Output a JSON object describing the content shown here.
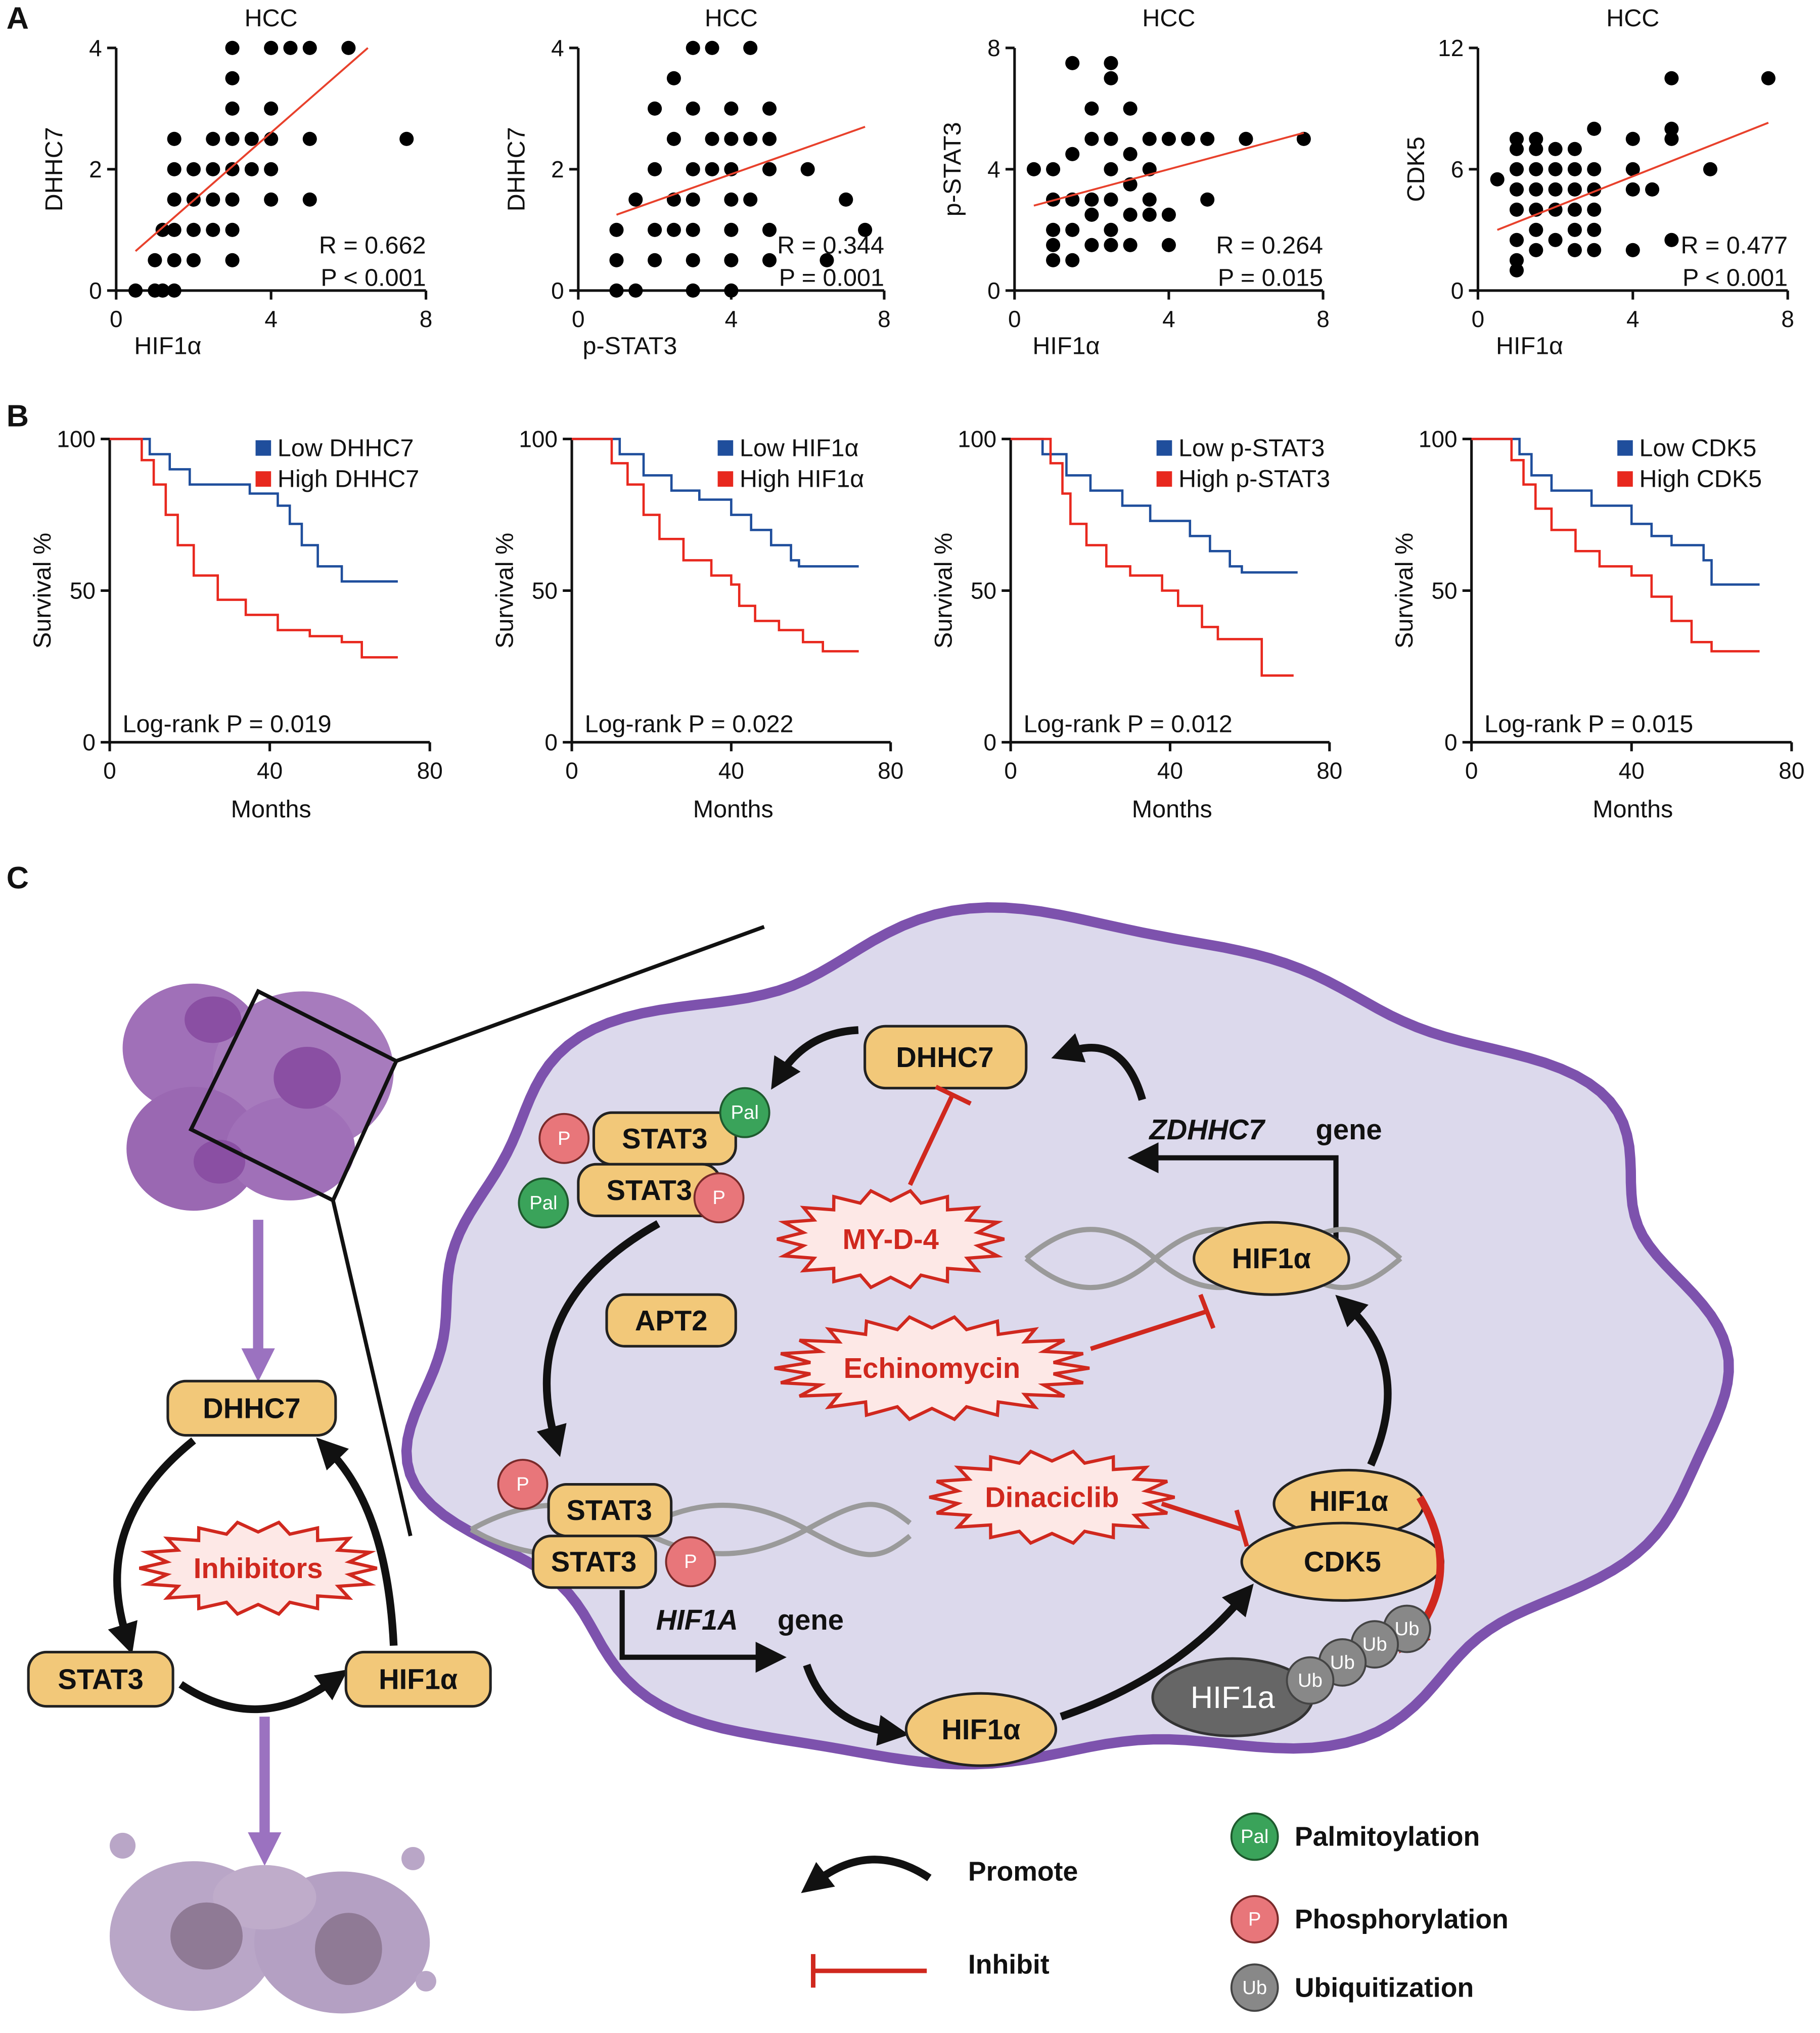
{
  "panel_labels": [
    "A",
    "B",
    "C"
  ],
  "chart_data": [
    {
      "type": "scatter",
      "title": "HCC",
      "x_label": "HIF1α",
      "y_label": "DHHC7",
      "color": "#000000",
      "x": [
        0.5,
        1,
        1.2,
        1.5,
        1,
        1.5,
        2,
        3,
        1.2,
        1.5,
        2,
        2.5,
        3,
        1.5,
        2,
        2.5,
        3,
        4,
        5,
        1.5,
        2,
        2.5,
        3,
        3.5,
        4,
        1.5,
        2.5,
        3,
        3.5,
        5,
        7.5,
        3,
        4,
        3,
        3,
        4,
        4.5,
        5,
        6,
        4
      ],
      "values": [
        0,
        0,
        0,
        0,
        0.5,
        0.5,
        0.5,
        0.5,
        1,
        1,
        1,
        1,
        1,
        1.5,
        1.5,
        1.5,
        1.5,
        1.5,
        1.5,
        2,
        2,
        2,
        2,
        2,
        2,
        2.5,
        2.5,
        2.5,
        2.5,
        2.5,
        2.5,
        3,
        3,
        3.5,
        4,
        4,
        4,
        4,
        4,
        2.5
      ],
      "trendline": {
        "x": [
          0.5,
          6.5
        ],
        "y": [
          0.65,
          4
        ],
        "color": "#e8412c"
      },
      "annotations": [
        "R = 0.662",
        "P < 0.001"
      ],
      "xlim": [
        0,
        8
      ],
      "ylim": [
        0,
        4
      ],
      "xticks": [
        0,
        4,
        8
      ],
      "yticks": [
        0,
        2,
        4
      ]
    },
    {
      "type": "scatter",
      "title": "HCC",
      "x_label": "p-STAT3",
      "y_label": "DHHC7",
      "color": "#000000",
      "x": [
        1,
        1.5,
        3,
        4,
        1,
        2,
        3,
        4,
        5,
        6.5,
        1,
        2,
        2.5,
        3,
        4,
        5,
        1.5,
        2.5,
        3,
        4,
        4.5,
        7,
        7.5,
        2,
        3,
        3.5,
        4,
        5,
        6,
        2.5,
        3.5,
        4,
        4.5,
        5,
        2,
        3,
        4,
        5,
        2.5,
        3,
        3.5,
        4.5
      ],
      "values": [
        0,
        0,
        0,
        0,
        0.5,
        0.5,
        0.5,
        0.5,
        0.5,
        0.5,
        1,
        1,
        1,
        1,
        1,
        1,
        1.5,
        1.5,
        1.5,
        1.5,
        1.5,
        1.5,
        1,
        2,
        2,
        2,
        2,
        2,
        2,
        2.5,
        2.5,
        2.5,
        2.5,
        2.5,
        3,
        3,
        3,
        3,
        3.5,
        4,
        4,
        4
      ],
      "trendline": {
        "x": [
          1,
          7.5
        ],
        "y": [
          1.25,
          2.7
        ],
        "color": "#e8412c"
      },
      "annotations": [
        "R = 0.344",
        "P = 0.001"
      ],
      "xlim": [
        0,
        8
      ],
      "ylim": [
        0,
        4
      ],
      "xticks": [
        0,
        4,
        8
      ],
      "yticks": [
        0,
        2,
        4
      ]
    },
    {
      "type": "scatter",
      "title": "HCC",
      "x_label": "HIF1α",
      "y_label": "p-STAT3",
      "color": "#000000",
      "x": [
        0.5,
        1,
        1,
        1,
        1,
        1,
        1.5,
        1.5,
        1.5,
        1.5,
        1.5,
        2,
        2,
        2,
        2,
        2,
        2.5,
        2.5,
        2.5,
        2.5,
        2.5,
        2.5,
        2.5,
        3,
        3,
        3,
        3,
        3,
        3.5,
        3.5,
        3.5,
        3.5,
        4,
        4,
        4,
        4.5,
        5,
        5,
        6,
        7.5
      ],
      "values": [
        4,
        1,
        1.5,
        2,
        3,
        4,
        1,
        2,
        3,
        4.5,
        7.5,
        1.5,
        2.5,
        3,
        5,
        6,
        1.5,
        2,
        3,
        4,
        5,
        7,
        7.5,
        1.5,
        2.5,
        3.5,
        4.5,
        6,
        2.5,
        3,
        4,
        5,
        1.5,
        2.5,
        5,
        5,
        3,
        5,
        5,
        5
      ],
      "trendline": {
        "x": [
          0.5,
          7.5
        ],
        "y": [
          2.8,
          5.2
        ],
        "color": "#e8412c"
      },
      "annotations": [
        "R = 0.264",
        "P = 0.015"
      ],
      "xlim": [
        0,
        8
      ],
      "ylim": [
        0,
        8
      ],
      "xticks": [
        0,
        4,
        8
      ],
      "yticks": [
        0,
        4,
        8
      ]
    },
    {
      "type": "scatter",
      "title": "HCC",
      "x_label": "HIF1α",
      "y_label": "CDK5",
      "color": "#000000",
      "x": [
        0.5,
        1,
        1,
        1,
        1,
        1,
        1,
        1,
        1,
        1.5,
        1.5,
        1.5,
        1.5,
        1.5,
        1.5,
        1.5,
        2,
        2,
        2,
        2,
        2,
        2.5,
        2.5,
        2.5,
        2.5,
        2.5,
        2.5,
        3,
        3,
        3,
        3,
        3,
        3,
        4,
        4,
        4,
        4,
        4.5,
        5,
        5,
        5,
        5,
        6,
        7.5
      ],
      "values": [
        5.5,
        1,
        1.5,
        2.5,
        4,
        5,
        6,
        7,
        7.5,
        2,
        3,
        4,
        5,
        6,
        7,
        7.5,
        2.5,
        4,
        5,
        6,
        7,
        2,
        3,
        4,
        5,
        6,
        7,
        2,
        3,
        4,
        5,
        6,
        8,
        2,
        5,
        6,
        7.5,
        5,
        2.5,
        7.5,
        8,
        10.5,
        6,
        10.5
      ],
      "trendline": {
        "x": [
          0.5,
          7.5
        ],
        "y": [
          3,
          8.3
        ],
        "color": "#e8412c"
      },
      "annotations": [
        "R = 0.477",
        "P < 0.001"
      ],
      "xlim": [
        0,
        8
      ],
      "ylim": [
        0,
        12
      ],
      "xticks": [
        0,
        4,
        8
      ],
      "yticks": [
        0,
        6,
        12
      ]
    },
    {
      "type": "line",
      "x_label": "Months",
      "y_label": "Survival %",
      "annotation": "Log-rank P = 0.019",
      "xlim": [
        0,
        80
      ],
      "ylim": [
        0,
        100
      ],
      "xticks": [
        0,
        40,
        80
      ],
      "yticks": [
        0,
        50,
        100
      ],
      "series": [
        {
          "name": "Low DHHC7",
          "color": "#1f4e9c",
          "x": [
            0,
            10,
            10,
            15,
            15,
            20,
            20,
            35,
            35,
            42,
            42,
            45,
            45,
            48,
            48,
            52,
            52,
            58,
            58,
            72
          ],
          "values": [
            100,
            100,
            95,
            95,
            90,
            90,
            85,
            85,
            82,
            82,
            78,
            78,
            72,
            72,
            65,
            65,
            58,
            58,
            53,
            53
          ]
        },
        {
          "name": "High DHHC7",
          "color": "#e8281e",
          "x": [
            0,
            8,
            8,
            11,
            11,
            14,
            14,
            17,
            17,
            21,
            21,
            27,
            27,
            34,
            34,
            42,
            42,
            50,
            50,
            58,
            58,
            63,
            63,
            72
          ],
          "values": [
            100,
            100,
            93,
            93,
            85,
            85,
            75,
            75,
            65,
            65,
            55,
            55,
            47,
            47,
            42,
            42,
            37,
            37,
            35,
            35,
            33,
            33,
            28,
            28
          ]
        }
      ]
    },
    {
      "type": "line",
      "x_label": "Months",
      "y_label": "Survival %",
      "annotation": "Log-rank P = 0.022",
      "xlim": [
        0,
        80
      ],
      "ylim": [
        0,
        100
      ],
      "xticks": [
        0,
        40,
        80
      ],
      "yticks": [
        0,
        50,
        100
      ],
      "series": [
        {
          "name": "Low HIF1α",
          "color": "#1f4e9c",
          "x": [
            0,
            12,
            12,
            18,
            18,
            25,
            25,
            32,
            32,
            40,
            40,
            45,
            45,
            50,
            50,
            55,
            55,
            57,
            57,
            72
          ],
          "values": [
            100,
            100,
            95,
            95,
            88,
            88,
            83,
            83,
            80,
            80,
            75,
            75,
            70,
            70,
            65,
            65,
            60,
            60,
            58,
            58
          ]
        },
        {
          "name": "High HIF1α",
          "color": "#e8281e",
          "x": [
            0,
            10,
            10,
            14,
            14,
            18,
            18,
            22,
            22,
            28,
            28,
            35,
            35,
            40,
            40,
            42,
            42,
            46,
            46,
            52,
            52,
            58,
            58,
            63,
            63,
            72
          ],
          "values": [
            100,
            100,
            92,
            92,
            85,
            85,
            75,
            75,
            67,
            67,
            60,
            60,
            55,
            55,
            52,
            52,
            45,
            45,
            40,
            40,
            37,
            37,
            33,
            33,
            30,
            30
          ]
        }
      ]
    },
    {
      "type": "line",
      "x_label": "Months",
      "y_label": "Survival %",
      "annotation": "Log-rank P = 0.012",
      "xlim": [
        0,
        80
      ],
      "ylim": [
        0,
        100
      ],
      "xticks": [
        0,
        40,
        80
      ],
      "yticks": [
        0,
        50,
        100
      ],
      "series": [
        {
          "name": "Low p-STAT3",
          "color": "#1f4e9c",
          "x": [
            0,
            8,
            8,
            14,
            14,
            20,
            20,
            28,
            28,
            35,
            35,
            45,
            45,
            50,
            50,
            55,
            55,
            58,
            58,
            72
          ],
          "values": [
            100,
            100,
            95,
            95,
            88,
            88,
            83,
            83,
            78,
            78,
            73,
            73,
            68,
            68,
            63,
            63,
            58,
            58,
            56,
            56
          ]
        },
        {
          "name": "High p-STAT3",
          "color": "#e8281e",
          "x": [
            0,
            10,
            10,
            13,
            13,
            15,
            15,
            19,
            19,
            24,
            24,
            30,
            30,
            38,
            38,
            42,
            42,
            48,
            48,
            52,
            52,
            63,
            63,
            71
          ],
          "values": [
            100,
            100,
            92,
            92,
            82,
            82,
            72,
            72,
            65,
            65,
            58,
            58,
            55,
            55,
            50,
            50,
            45,
            45,
            38,
            38,
            34,
            34,
            22,
            22
          ]
        }
      ]
    },
    {
      "type": "line",
      "x_label": "Months",
      "y_label": "Survival %",
      "annotation": "Log-rank P = 0.015",
      "xlim": [
        0,
        80
      ],
      "ylim": [
        0,
        100
      ],
      "xticks": [
        0,
        40,
        80
      ],
      "yticks": [
        0,
        50,
        100
      ],
      "series": [
        {
          "name": "Low CDK5",
          "color": "#1f4e9c",
          "x": [
            0,
            12,
            12,
            15,
            15,
            20,
            20,
            30,
            30,
            40,
            40,
            45,
            45,
            50,
            50,
            58,
            58,
            60,
            60,
            72
          ],
          "values": [
            100,
            100,
            95,
            95,
            88,
            88,
            83,
            83,
            78,
            78,
            72,
            72,
            68,
            68,
            65,
            65,
            60,
            60,
            52,
            52
          ]
        },
        {
          "name": "High CDK5",
          "color": "#e8281e",
          "x": [
            0,
            10,
            10,
            13,
            13,
            16,
            16,
            20,
            20,
            26,
            26,
            32,
            32,
            40,
            40,
            45,
            45,
            50,
            50,
            55,
            55,
            60,
            60,
            72
          ],
          "values": [
            100,
            100,
            93,
            93,
            85,
            85,
            77,
            77,
            70,
            70,
            63,
            63,
            58,
            58,
            55,
            55,
            48,
            48,
            40,
            40,
            33,
            33,
            30,
            30
          ]
        }
      ]
    }
  ],
  "diagram": {
    "left": {
      "dhhc7": "DHHC7",
      "inhibitors": "Inhibitors",
      "stat3": "STAT3",
      "hif1a": "HIF1α"
    },
    "cell": {
      "dhhc7": "DHHC7",
      "zdhhc7": "ZDHHC7",
      "zdhhc7_gene": "gene",
      "stat3_a": "STAT3",
      "stat3_b": "STAT3",
      "pal_a": "Pal",
      "pal_b": "Pal",
      "p_a": "P",
      "p_b": "P",
      "myd4": "MY-D-4",
      "hif1a_dna": "HIF1α",
      "apt2": "APT2",
      "echinomycin": "Echinomycin",
      "dinaciclib": "Dinaciclib",
      "stat3_c": "STAT3",
      "stat3_d": "STAT3",
      "p_c": "P",
      "p_d": "P",
      "hif1a_gene_name": "HIF1A",
      "hif1a_gene": "gene",
      "hif1a_free": "HIF1α",
      "complex_hif1a": "HIF1α",
      "complex_cdk5": "CDK5",
      "degraded": "HIF1a",
      "ub": [
        "Ub",
        "Ub",
        "Ub",
        "Ub"
      ]
    },
    "legend": {
      "promote": "Promote",
      "inhibit": "Inhibit",
      "pal_symbol": "Pal",
      "palmitoylation": "Palmitoylation",
      "p_symbol": "P",
      "phosphorylation": "Phosphorylation",
      "ub_symbol": "Ub",
      "ubiquitization": "Ubiquitization"
    }
  }
}
